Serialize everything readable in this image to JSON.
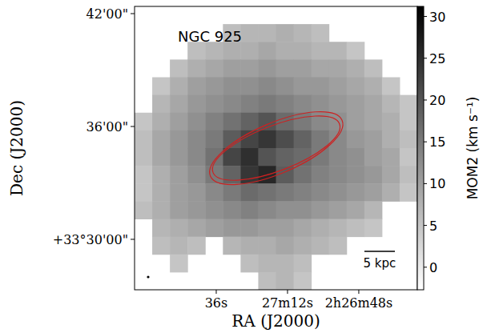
{
  "chart_data": {
    "type": "heatmap",
    "title": "NGC 925",
    "x_label": "RA (J2000)",
    "y_label": "Dec (J2000)",
    "colorbar_label": "MOM2 (km s⁻¹)",
    "color": "Greys",
    "xlim": [
      8883.5,
      8788.3
    ],
    "ylim": [
      33.4553,
      33.7064
    ],
    "xticks": [
      {
        "value": 8856,
        "label": "36s"
      },
      {
        "value": 8832,
        "label": "27m12s"
      },
      {
        "value": 8808,
        "label": "2h26m48s"
      }
    ],
    "yticks": [
      {
        "value": 33.5,
        "label": "+33°30'00\""
      },
      {
        "value": 33.6,
        "label": "36'00\""
      },
      {
        "value": 33.7,
        "label": "42'00\""
      }
    ],
    "clim": [
      -2.7,
      31.2
    ],
    "cticks": [
      0,
      5,
      10,
      15,
      20,
      25,
      30
    ],
    "z": [
      [
        null,
        null,
        null,
        null,
        null,
        null,
        null,
        null,
        null,
        null,
        null,
        null,
        null,
        null,
        null,
        null
      ],
      [
        null,
        null,
        null,
        null,
        null,
        6,
        7,
        7,
        8,
        7,
        6,
        null,
        null,
        null,
        null,
        null
      ],
      [
        null,
        null,
        null,
        6,
        7,
        8,
        8,
        9,
        8,
        8,
        7,
        7,
        5,
        null,
        null,
        null
      ],
      [
        null,
        null,
        6,
        8,
        9,
        10,
        10,
        11,
        10,
        10,
        9,
        9,
        8,
        6,
        null,
        null
      ],
      [
        null,
        5,
        8,
        10,
        11,
        12,
        12,
        13,
        12,
        11,
        11,
        10,
        9,
        8,
        5,
        null
      ],
      [
        null,
        7,
        9,
        11,
        12,
        13,
        14,
        15,
        14,
        13,
        12,
        11,
        10,
        9,
        7,
        5
      ],
      [
        5,
        8,
        10,
        12,
        14,
        16,
        18,
        20,
        17,
        15,
        13,
        12,
        10,
        9,
        8,
        5
      ],
      [
        6,
        9,
        11,
        13,
        15,
        19,
        22,
        24,
        21,
        18,
        15,
        13,
        11,
        10,
        8,
        6
      ],
      [
        6,
        9,
        11,
        13,
        16,
        22,
        25,
        20,
        18,
        17,
        15,
        13,
        12,
        10,
        9,
        5
      ],
      [
        5,
        8,
        10,
        12,
        15,
        18,
        24,
        26,
        19,
        16,
        14,
        13,
        12,
        11,
        9,
        6
      ],
      [
        5,
        8,
        10,
        11,
        13,
        15,
        17,
        16,
        15,
        14,
        13,
        12,
        11,
        10,
        8,
        5
      ],
      [
        6,
        8,
        10,
        11,
        12,
        13,
        14,
        13,
        12,
        12,
        11,
        10,
        9,
        7,
        null,
        null
      ],
      [
        null,
        7,
        8,
        9,
        10,
        11,
        11,
        10,
        10,
        9,
        8,
        7,
        6,
        5,
        null,
        null
      ],
      [
        null,
        6,
        7,
        6,
        null,
        7,
        8,
        8,
        9,
        8,
        7,
        6,
        null,
        null,
        null,
        null
      ],
      [
        null,
        null,
        5,
        null,
        null,
        null,
        6,
        7,
        7,
        6,
        null,
        null,
        null,
        null,
        null,
        null
      ],
      [
        null,
        null,
        null,
        null,
        null,
        null,
        null,
        6,
        7,
        5,
        null,
        null,
        null,
        null,
        null,
        null
      ]
    ],
    "ellipses": [
      {
        "ra": 8835.8,
        "dec": 33.5808,
        "a_arcmin": 3.6,
        "b_arcmin": 1.2,
        "pa_deg": 291,
        "color": "#cc2222"
      },
      {
        "ra": 8835.8,
        "dec": 33.5808,
        "a_arcmin": 3.8,
        "b_arcmin": 1.35,
        "pa_deg": 293,
        "color": "#cc2222"
      }
    ],
    "scale_bar": {
      "label": "5 kpc",
      "length_arcmin": 1.62
    }
  }
}
